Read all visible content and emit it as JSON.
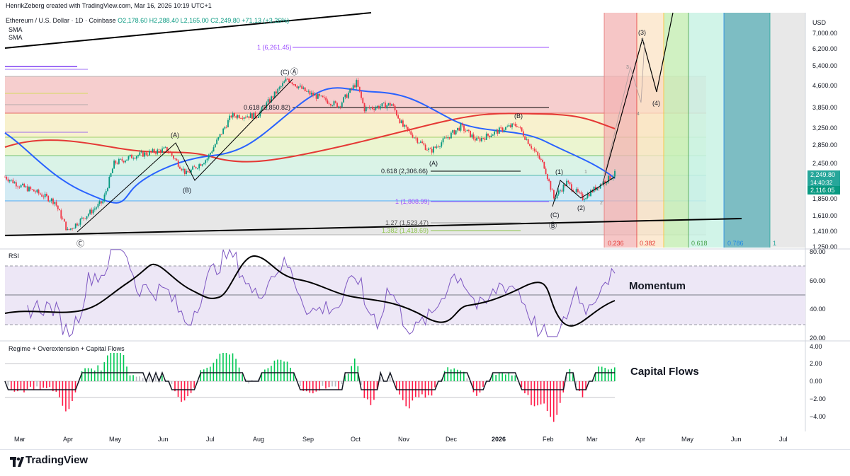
{
  "header": {
    "credit": "HenrikZeberg created with TradingView.com, Mar 16, 2026 10:19 UTC+1",
    "symbol": "Ethereum / U.S. Dollar · 1D · Coinbase",
    "ohlc": "O2,178.60  H2,288.40  L2,165.00  C2,249.80  +71.13 (+3.26%)",
    "sma1": "SMA",
    "sma2": "SMA",
    "currency": "USD"
  },
  "panes": {
    "rsi_title": "RSI",
    "rsi_label": "Momentum",
    "flows_title": "Regime + Overextension + Capital Flows",
    "flows_label": "Capital Flows"
  },
  "footer": {
    "brand": "TradingView"
  },
  "colors": {
    "up": "#089981",
    "down": "#f23645",
    "sma_blue": "#2962ff",
    "sma_red": "#e53935",
    "rsi_line": "#7e57c2",
    "rsi_ma": "#000000",
    "flows_pos": "#00c853",
    "flows_neg": "#ff1744"
  },
  "chart_data": {
    "type": "candlestick",
    "price_axis": {
      "scale": "log",
      "ticks": [
        "7,000.00",
        "6,200.00",
        "5,400.00",
        "4,600.00",
        "3,850.00",
        "3,250.00",
        "2,850.00",
        "2,450.00",
        "2,116.05",
        "1,850.00",
        "1,610.00",
        "1,410.00",
        "1,250.00"
      ],
      "last_price": "2,249.80",
      "countdown": "14:40:32",
      "sma_value": "2,116.05"
    },
    "time_axis": [
      "Mar",
      "Apr",
      "May",
      "Jun",
      "Jul",
      "Aug",
      "Sep",
      "Oct",
      "Nov",
      "Dec",
      "2026",
      "Feb",
      "Mar",
      "Apr",
      "May",
      "Jun",
      "Jul"
    ],
    "close_path": [
      {
        "date": "2025-03-01",
        "close": 2200
      },
      {
        "date": "2025-03-10",
        "close": 2050
      },
      {
        "date": "2025-03-20",
        "close": 1950
      },
      {
        "date": "2025-04-01",
        "close": 1800
      },
      {
        "date": "2025-04-09",
        "close": 1420
      },
      {
        "date": "2025-04-20",
        "close": 1600
      },
      {
        "date": "2025-05-01",
        "close": 1800
      },
      {
        "date": "2025-05-08",
        "close": 2450
      },
      {
        "date": "2025-05-20",
        "close": 2600
      },
      {
        "date": "2025-06-10",
        "close": 2750
      },
      {
        "date": "2025-06-22",
        "close": 2250
      },
      {
        "date": "2025-07-05",
        "close": 2550
      },
      {
        "date": "2025-07-20",
        "close": 3600
      },
      {
        "date": "2025-08-05",
        "close": 3600
      },
      {
        "date": "2025-08-24",
        "close": 4850
      },
      {
        "date": "2025-09-05",
        "close": 4350
      },
      {
        "date": "2025-09-25",
        "close": 3900
      },
      {
        "date": "2025-10-06",
        "close": 4700
      },
      {
        "date": "2025-10-11",
        "close": 3800
      },
      {
        "date": "2025-10-28",
        "close": 3950
      },
      {
        "date": "2025-11-04",
        "close": 3300
      },
      {
        "date": "2025-11-21",
        "close": 2700
      },
      {
        "date": "2025-12-10",
        "close": 3300
      },
      {
        "date": "2025-12-20",
        "close": 2950
      },
      {
        "date": "2026-01-06",
        "close": 3250
      },
      {
        "date": "2026-01-14",
        "close": 3350
      },
      {
        "date": "2026-01-31",
        "close": 2400
      },
      {
        "date": "2026-02-06",
        "close": 1850
      },
      {
        "date": "2026-02-14",
        "close": 2100
      },
      {
        "date": "2026-02-24",
        "close": 1850
      },
      {
        "date": "2026-03-06",
        "close": 2050
      },
      {
        "date": "2026-03-16",
        "close": 2249.8
      }
    ],
    "horizontal_levels": [
      {
        "label": "1 (6,261.45)",
        "price": 6261.45
      },
      {
        "label": "0.618 (3,850.82)",
        "price": 3850.82
      },
      {
        "label": "0.618 (2,306.66)",
        "price": 2306.66
      },
      {
        "label": "1 (1,808.99)",
        "price": 1808.99
      },
      {
        "label": "1.27 (1,523.47)",
        "price": 1523.47
      },
      {
        "label": "1.382 (1,418.69)",
        "price": 1418.69
      }
    ],
    "wave_labels": [
      "(C)",
      "Ⓐ",
      "(A)",
      "(B)",
      "Ⓒ",
      "(A)",
      "(B)",
      "(C)",
      "Ⓑ",
      "(1)",
      "(2)",
      "(3)",
      "(4)",
      "1",
      "2",
      "3",
      "4",
      "5"
    ],
    "fib_time_zones": [
      "0.236",
      "0.382",
      "0.618",
      "0.786",
      "1"
    ],
    "rsi": {
      "axis_ticks": [
        "80.00",
        "60.00",
        "40.00",
        "20.00"
      ],
      "upper_band": 70,
      "lower_band": 30,
      "mid": 50
    },
    "capital_flows": {
      "axis_ticks": [
        "4.00",
        "2.00",
        "0.00",
        "−2.00",
        "−4.00"
      ]
    }
  }
}
